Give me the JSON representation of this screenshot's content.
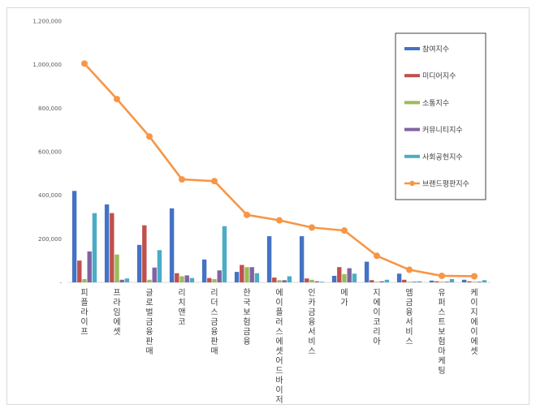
{
  "chart_data": {
    "type": "bar",
    "categories": [
      "피플라이프",
      "프라임에셋",
      "글로벌금융판매",
      "리치앤코",
      "리더스금융판매",
      "한국보험금융",
      "에이플러스에셋어드바이저",
      "인카금융서비스",
      "메가",
      "지에이코리아",
      "엠금융서비스",
      "유퍼스트보험마케팅",
      "케이지에이에셋"
    ],
    "series": [
      {
        "name": "참여지수",
        "color": "#4472c4",
        "values": [
          420000,
          358000,
          172000,
          340000,
          105000,
          48000,
          212000,
          212000,
          30000,
          95000,
          40000,
          8000,
          12000
        ]
      },
      {
        "name": "미디어지수",
        "color": "#c0504d",
        "values": [
          100000,
          318000,
          262000,
          42000,
          20000,
          80000,
          22000,
          18000,
          70000,
          10000,
          12000,
          5000,
          5000
        ]
      },
      {
        "name": "소통지수",
        "color": "#9bbb59",
        "values": [
          15000,
          128000,
          12000,
          28000,
          15000,
          70000,
          10000,
          12000,
          38000,
          3000,
          3000,
          3000,
          3000
        ]
      },
      {
        "name": "커뮤니티지수",
        "color": "#8064a2",
        "values": [
          142000,
          12000,
          68000,
          32000,
          55000,
          70000,
          10000,
          5000,
          65000,
          5000,
          3000,
          3000,
          3000
        ]
      },
      {
        "name": "사회공헌지수",
        "color": "#4bacc6",
        "values": [
          318000,
          18000,
          148000,
          20000,
          258000,
          42000,
          28000,
          3000,
          40000,
          12000,
          5000,
          15000,
          10000
        ]
      }
    ],
    "line": {
      "name": "브랜드평판지수",
      "color": "#f79646",
      "values": [
        1005000,
        842000,
        670000,
        473000,
        465000,
        310000,
        285000,
        252000,
        238000,
        122000,
        58000,
        30000,
        28000
      ]
    },
    "ylim": [
      0,
      1200000
    ],
    "yticks": [
      "-",
      "200,000",
      "400,000",
      "600,000",
      "800,000",
      "1,000,000",
      "1,200,000"
    ],
    "legend_position": "top-right",
    "grid": false
  }
}
